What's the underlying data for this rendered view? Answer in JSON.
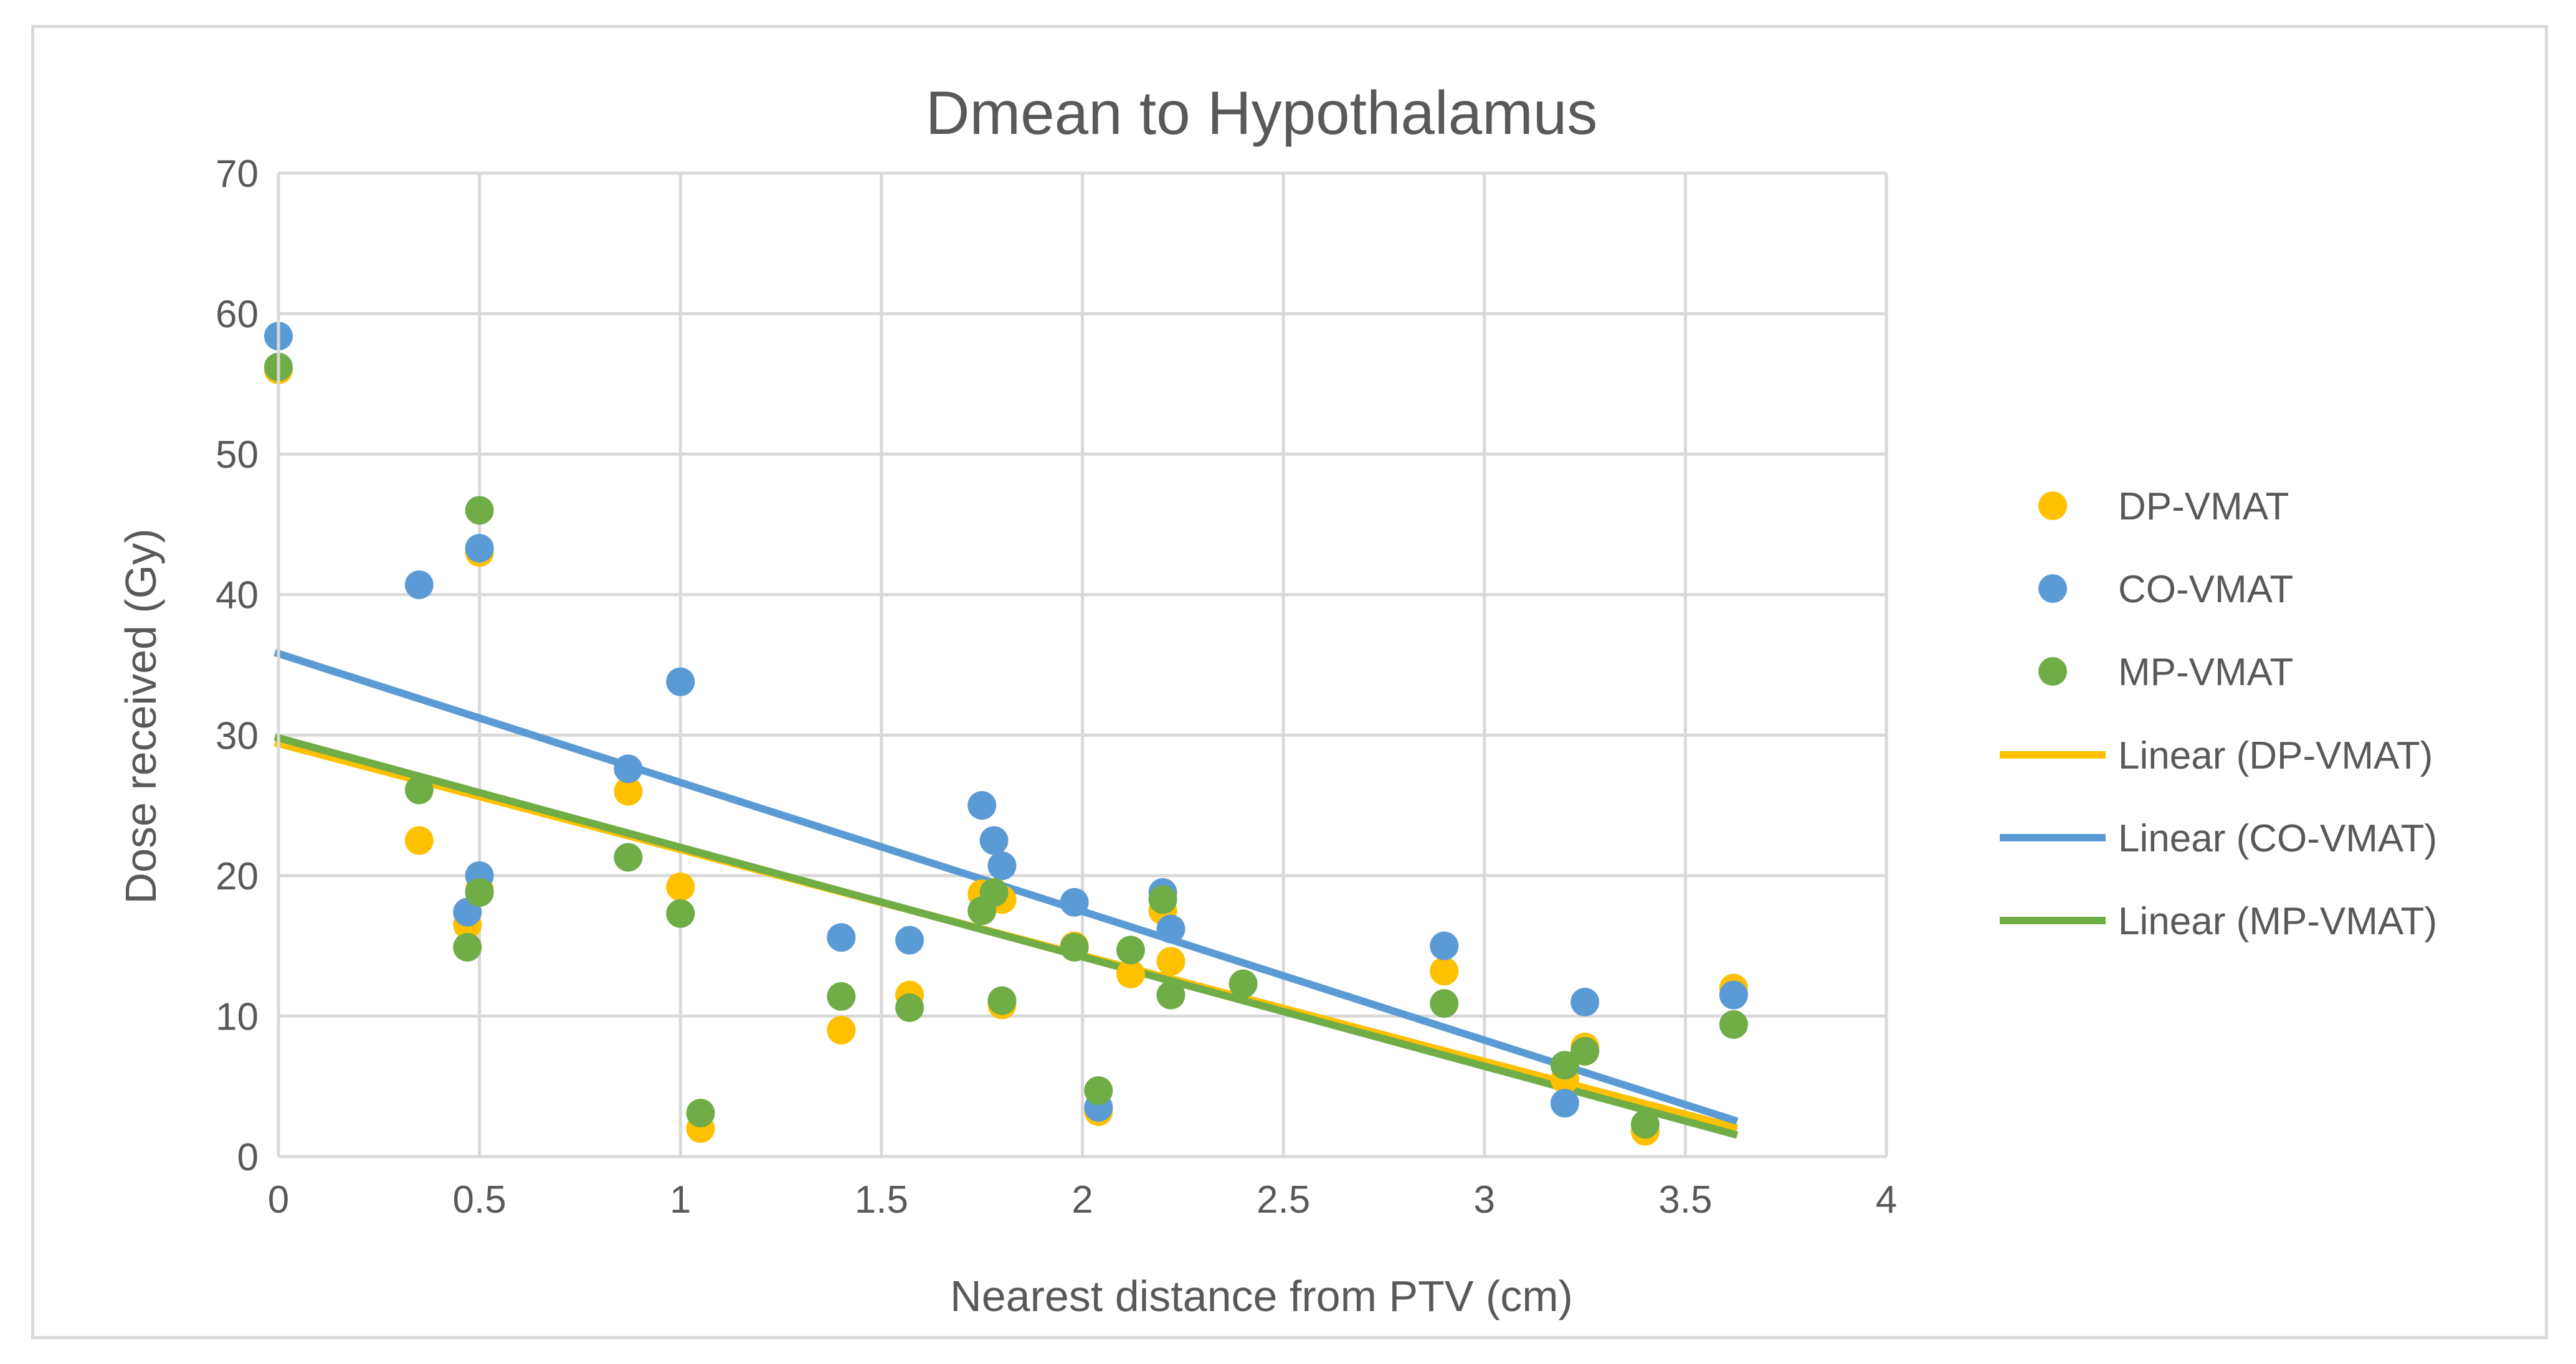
{
  "chart_data": {
    "type": "scatter",
    "title": "Dmean to Hypothalamus",
    "xlabel": "Nearest distance from PTV (cm)",
    "ylabel": "Dose received (Gy)",
    "xlim": [
      0,
      4
    ],
    "ylim": [
      0,
      70
    ],
    "xticks": [
      0,
      0.5,
      1,
      1.5,
      2,
      2.5,
      3,
      3.5,
      4
    ],
    "xtick_labels": [
      "0",
      "0.5",
      "1",
      "1.5",
      "2",
      "2.5",
      "3",
      "3.5",
      "4"
    ],
    "yticks": [
      0,
      10,
      20,
      30,
      40,
      50,
      60,
      70
    ],
    "ytick_labels": [
      "0",
      "10",
      "20",
      "30",
      "40",
      "50",
      "60",
      "70"
    ],
    "grid": true,
    "legend_position": "right",
    "series": [
      {
        "name": "DP-VMAT",
        "color": "#FFC000",
        "points": [
          [
            0,
            56
          ],
          [
            0.35,
            22.5
          ],
          [
            0.47,
            16.5
          ],
          [
            0.5,
            43
          ],
          [
            0.5,
            19
          ],
          [
            0.87,
            26
          ],
          [
            1,
            19.2
          ],
          [
            1.05,
            2
          ],
          [
            1.4,
            9
          ],
          [
            1.57,
            11.5
          ],
          [
            1.75,
            18.7
          ],
          [
            1.8,
            18.3
          ],
          [
            1.8,
            10.8
          ],
          [
            1.98,
            15
          ],
          [
            2.04,
            3.2
          ],
          [
            2.12,
            13
          ],
          [
            2.2,
            17.5
          ],
          [
            2.22,
            13.9
          ],
          [
            2.9,
            13.2
          ],
          [
            3.2,
            5.5
          ],
          [
            3.25,
            7.8
          ],
          [
            3.4,
            1.8
          ],
          [
            3.62,
            12
          ]
        ]
      },
      {
        "name": "CO-VMAT",
        "color": "#5B9BD5",
        "points": [
          [
            0,
            58.4
          ],
          [
            0.35,
            40.7
          ],
          [
            0.47,
            17.4
          ],
          [
            0.5,
            43.3
          ],
          [
            0.5,
            20
          ],
          [
            0.87,
            27.6
          ],
          [
            1,
            33.8
          ],
          [
            1.4,
            15.6
          ],
          [
            1.57,
            15.4
          ],
          [
            1.75,
            25
          ],
          [
            1.78,
            22.5
          ],
          [
            1.8,
            20.7
          ],
          [
            1.98,
            18.1
          ],
          [
            2.04,
            3.5
          ],
          [
            2.2,
            18.8
          ],
          [
            2.22,
            16.2
          ],
          [
            2.9,
            15
          ],
          [
            3.2,
            3.8
          ],
          [
            3.25,
            11
          ],
          [
            3.62,
            11.5
          ]
        ]
      },
      {
        "name": "MP-VMAT",
        "color": "#70AD47",
        "points": [
          [
            0,
            56.2
          ],
          [
            0.35,
            26.1
          ],
          [
            0.47,
            14.9
          ],
          [
            0.5,
            46
          ],
          [
            0.5,
            18.8
          ],
          [
            0.87,
            21.3
          ],
          [
            1,
            17.3
          ],
          [
            1.05,
            3.1
          ],
          [
            1.4,
            11.4
          ],
          [
            1.57,
            10.6
          ],
          [
            1.75,
            17.5
          ],
          [
            1.78,
            18.8
          ],
          [
            1.8,
            11.1
          ],
          [
            1.98,
            14.9
          ],
          [
            2.04,
            4.7
          ],
          [
            2.12,
            14.7
          ],
          [
            2.2,
            18.3
          ],
          [
            2.22,
            11.5
          ],
          [
            2.4,
            12.3
          ],
          [
            2.9,
            10.9
          ],
          [
            3.2,
            6.5
          ],
          [
            3.25,
            7.5
          ],
          [
            3.4,
            2.3
          ],
          [
            3.62,
            9.4
          ]
        ]
      }
    ],
    "trendlines": [
      {
        "name": "Linear (DP-VMAT)",
        "color": "#FFC000",
        "x": [
          0,
          3.62
        ],
        "y": [
          29.4,
          2.1
        ]
      },
      {
        "name": "Linear (CO-VMAT)",
        "color": "#5B9BD5",
        "x": [
          0,
          3.62
        ],
        "y": [
          35.8,
          2.6
        ]
      },
      {
        "name": "Linear (MP-VMAT)",
        "color": "#70AD47",
        "x": [
          0,
          3.62
        ],
        "y": [
          29.8,
          1.6
        ]
      }
    ]
  }
}
